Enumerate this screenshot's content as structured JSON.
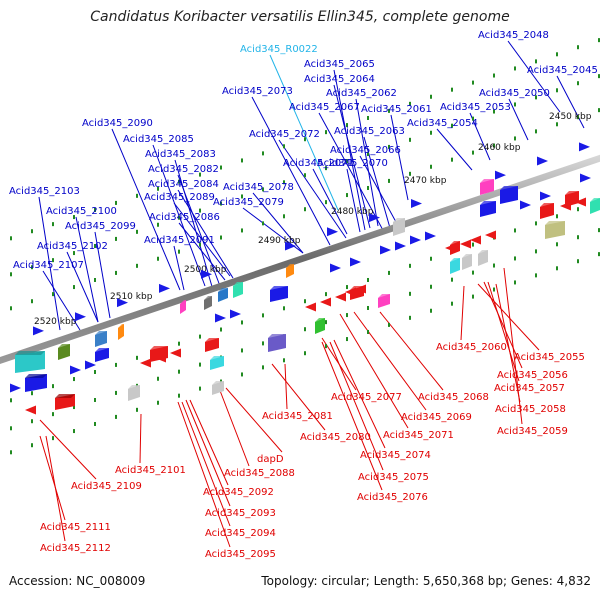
{
  "title": "Candidatus Koribacter versatilis Ellin345, complete genome",
  "footer": {
    "accession": "Accession: NC_008009",
    "summary": "Topology: circular; Length: 5,650,368 bp; Genes: 4,832"
  },
  "colors": {
    "upper_label": "#0000c8",
    "lower_label": "#e00000",
    "rna_label": "#22b4e8",
    "backbone": "#808080",
    "tick": "#208a20"
  },
  "scale_ticks": [
    {
      "text": "2450 kbp",
      "kbp": 2450
    },
    {
      "text": "2460 kbp",
      "kbp": 2460
    },
    {
      "text": "2470 kbp",
      "kbp": 2470
    },
    {
      "text": "2480 kbp",
      "kbp": 2480
    },
    {
      "text": "2490 kbp",
      "kbp": 2490
    },
    {
      "text": "2500 kbp",
      "kbp": 2500
    },
    {
      "text": "2510 kbp",
      "kbp": 2510
    },
    {
      "text": "2520 kbp",
      "kbp": 2520
    }
  ],
  "upper_labels": [
    {
      "text": "Acid345_2048",
      "kind": "gene"
    },
    {
      "text": "Acid345_R0022",
      "kind": "rna"
    },
    {
      "text": "Acid345_2045",
      "kind": "gene"
    },
    {
      "text": "Acid345_2065",
      "kind": "gene"
    },
    {
      "text": "Acid345_2064",
      "kind": "gene"
    },
    {
      "text": "Acid345_2073",
      "kind": "gene"
    },
    {
      "text": "Acid345_2062",
      "kind": "gene"
    },
    {
      "text": "Acid345_2050",
      "kind": "gene"
    },
    {
      "text": "Acid345_2067",
      "kind": "gene"
    },
    {
      "text": "Acid345_2061",
      "kind": "gene"
    },
    {
      "text": "Acid345_2053",
      "kind": "gene"
    },
    {
      "text": "Acid345_2090",
      "kind": "gene"
    },
    {
      "text": "Acid345_2054",
      "kind": "gene"
    },
    {
      "text": "Acid345_2063",
      "kind": "gene"
    },
    {
      "text": "Acid345_2072",
      "kind": "gene"
    },
    {
      "text": "Acid345_2085",
      "kind": "gene"
    },
    {
      "text": "Acid345_2066",
      "kind": "gene"
    },
    {
      "text": "Acid345_2083",
      "kind": "gene"
    },
    {
      "text": "Acid345_2070",
      "kind": "gene"
    },
    {
      "text": "Acid345_2071",
      "kind": "gene"
    },
    {
      "text": "Acid345_2082",
      "kind": "gene"
    },
    {
      "text": "Acid345_2084",
      "kind": "gene"
    },
    {
      "text": "Acid345_2078",
      "kind": "gene"
    },
    {
      "text": "Acid345_2103",
      "kind": "gene"
    },
    {
      "text": "Acid345_2089",
      "kind": "gene"
    },
    {
      "text": "Acid345_2079",
      "kind": "gene"
    },
    {
      "text": "Acid345_2100",
      "kind": "gene"
    },
    {
      "text": "Acid345_2086",
      "kind": "gene"
    },
    {
      "text": "Acid345_2099",
      "kind": "gene"
    },
    {
      "text": "Acid345_2091",
      "kind": "gene"
    },
    {
      "text": "Acid345_2102",
      "kind": "gene"
    },
    {
      "text": "Acid345_2107",
      "kind": "gene"
    }
  ],
  "lower_labels": [
    {
      "text": "Acid345_2060"
    },
    {
      "text": "Acid345_2055"
    },
    {
      "text": "Acid345_2056"
    },
    {
      "text": "Acid345_2057"
    },
    {
      "text": "Acid345_2068"
    },
    {
      "text": "Acid345_2077"
    },
    {
      "text": "Acid345_2058"
    },
    {
      "text": "Acid345_2081"
    },
    {
      "text": "Acid345_2069"
    },
    {
      "text": "Acid345_2059"
    },
    {
      "text": "Acid345_2080"
    },
    {
      "text": "Acid345_2071"
    },
    {
      "text": "dapD"
    },
    {
      "text": "Acid345_2074"
    },
    {
      "text": "Acid345_2101"
    },
    {
      "text": "Acid345_2088"
    },
    {
      "text": "Acid345_2075"
    },
    {
      "text": "Acid345_2109"
    },
    {
      "text": "Acid345_2092"
    },
    {
      "text": "Acid345_2076"
    },
    {
      "text": "Acid345_2093"
    },
    {
      "text": "Acid345_2111"
    },
    {
      "text": "Acid345_2094"
    },
    {
      "text": "Acid345_2112"
    },
    {
      "text": "Acid345_2095"
    }
  ]
}
